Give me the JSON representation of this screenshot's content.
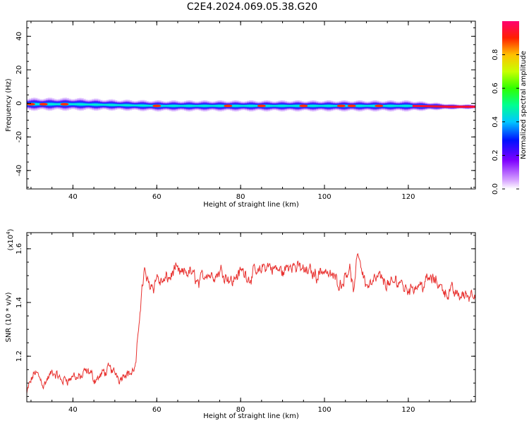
{
  "title": "C2E4.2024.069.05.38.G20",
  "chart_data": [
    {
      "type": "heatmap",
      "xlabel": "Height of straight line (km)",
      "ylabel": "Frequency (Hz)",
      "xlim": [
        29,
        136
      ],
      "ylim": [
        -51,
        49
      ],
      "xticks": [
        40,
        60,
        80,
        100,
        120
      ],
      "yticks": [
        -40,
        -20,
        0,
        20,
        40
      ],
      "colorbar": {
        "label": "Normalized spectral amplitude",
        "ticks": [
          "0.0",
          "0.2",
          "0.4",
          "0.6",
          "0.8"
        ],
        "range": [
          0,
          1
        ]
      },
      "ridge": {
        "x": [
          29,
          40,
          50,
          60,
          70,
          80,
          90,
          100,
          110,
          120,
          130,
          136
        ],
        "center_hz": [
          -0.5,
          -0.5,
          -1,
          -1.5,
          -1.5,
          -1.5,
          -1.5,
          -1.5,
          -1.5,
          -1.5,
          -2,
          -2
        ],
        "halfwidth_hz": [
          3.5,
          3.5,
          3,
          3,
          3,
          3,
          3,
          3,
          3,
          3,
          1.5,
          1.2
        ]
      }
    },
    {
      "type": "line",
      "xlabel": "Height of straight line (km)",
      "ylabel": "SNR (10 * v/v)",
      "scale_label": "(x10",
      "scale_exp": "4",
      "scale_close": ")",
      "xlim": [
        29,
        136
      ],
      "ylim": [
        1.03,
        1.66
      ],
      "ytick_labels": [
        "1.2",
        "1.4",
        "1.6"
      ],
      "yticks": [
        1.2,
        1.4,
        1.6
      ],
      "xticks": [
        40,
        60,
        80,
        100,
        120
      ],
      "color": "#e8312f",
      "x": [
        29,
        31,
        33,
        35,
        37,
        39,
        41,
        43,
        45,
        47,
        49,
        51,
        53,
        54,
        55,
        55.5,
        56,
        56.5,
        57,
        58,
        60,
        62,
        64,
        66,
        68,
        70,
        72,
        74,
        76,
        78,
        80,
        82,
        84,
        86,
        88,
        90,
        92,
        94,
        96,
        98,
        100,
        102,
        104,
        106,
        107,
        108,
        110,
        112,
        114,
        116,
        118,
        120,
        122,
        124,
        126,
        128,
        130,
        132,
        134,
        136
      ],
      "y": [
        1.06,
        1.14,
        1.11,
        1.13,
        1.1,
        1.12,
        1.12,
        1.13,
        1.11,
        1.13,
        1.15,
        1.13,
        1.15,
        1.14,
        1.16,
        1.25,
        1.37,
        1.46,
        1.52,
        1.48,
        1.5,
        1.47,
        1.52,
        1.49,
        1.51,
        1.48,
        1.52,
        1.5,
        1.53,
        1.49,
        1.52,
        1.5,
        1.51,
        1.53,
        1.52,
        1.51,
        1.54,
        1.53,
        1.52,
        1.51,
        1.53,
        1.5,
        1.48,
        1.55,
        1.43,
        1.58,
        1.47,
        1.5,
        1.48,
        1.46,
        1.48,
        1.46,
        1.47,
        1.49,
        1.48,
        1.46,
        1.44,
        1.43,
        1.43,
        1.45
      ]
    }
  ]
}
